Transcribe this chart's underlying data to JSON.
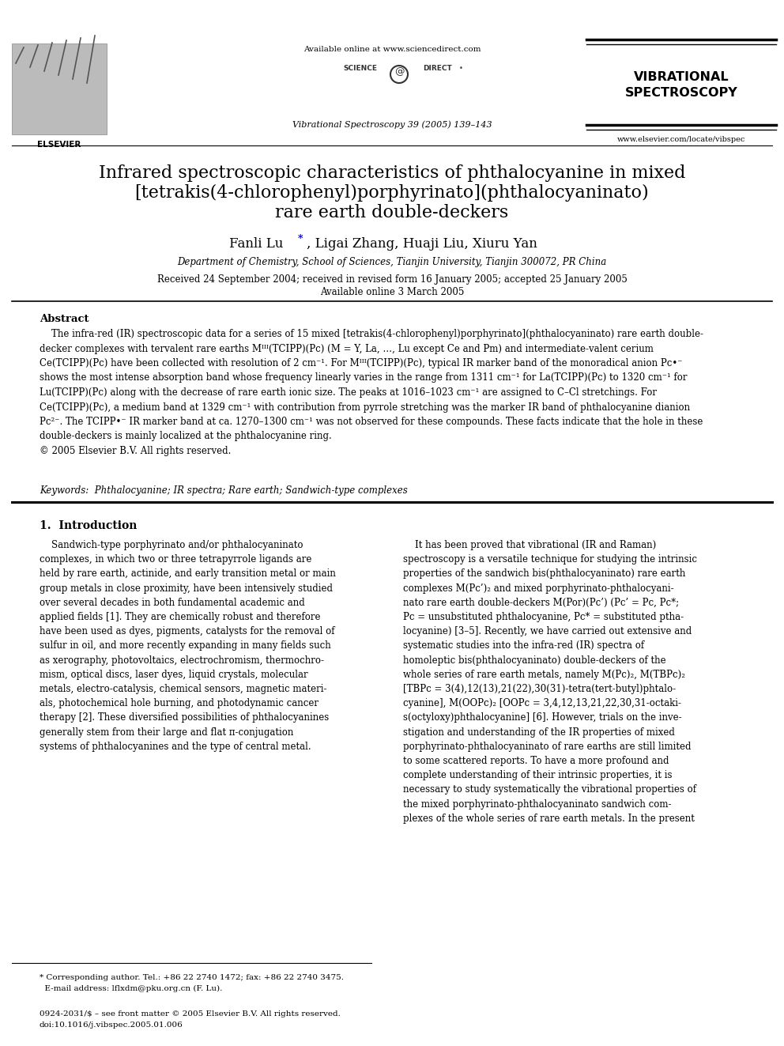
{
  "page_title_line1": "Infrared spectroscopic characteristics of phthalocyanine in mixed",
  "page_title_line2": "[tetrakis(4-chlorophenyl)porphyrinato](phthalocyaninato)",
  "page_title_line3": "rare earth double-deckers",
  "authors_part1": "Fanli Lu",
  "authors_part2": ", Ligai Zhang, Huaji Liu, Xiuru Yan",
  "affiliation": "Department of Chemistry, School of Sciences, Tianjin University, Tianjin 300072, PR China",
  "received": "Received 24 September 2004; received in revised form 16 January 2005; accepted 25 January 2005",
  "available": "Available online 3 March 2005",
  "journal_header": "Vibrational Spectroscopy 39 (2005) 139–143",
  "available_online": "Available online at www.sciencedirect.com",
  "journal_name_bold": "VIBRATIONAL\nSPECTROSCOPY",
  "journal_url": "www.elsevier.com/locate/vibspec",
  "abstract_title": "Abstract",
  "keywords": "Keywords:  Phthalocyanine; IR spectra; Rare earth; Sandwich-type complexes",
  "section1_title": "1.  Introduction",
  "footnote_line1": "* Corresponding author. Tel.: +86 22 2740 1472; fax: +86 22 2740 3475.",
  "footnote_line2": "  E-mail address: lflxdm@pku.org.cn (F. Lu).",
  "copyright_line1": "0924-2031/$ – see front matter © 2005 Elsevier B.V. All rights reserved.",
  "copyright_line2": "doi:10.1016/j.vibspec.2005.01.006",
  "bg_color": "#ffffff",
  "text_color": "#000000"
}
